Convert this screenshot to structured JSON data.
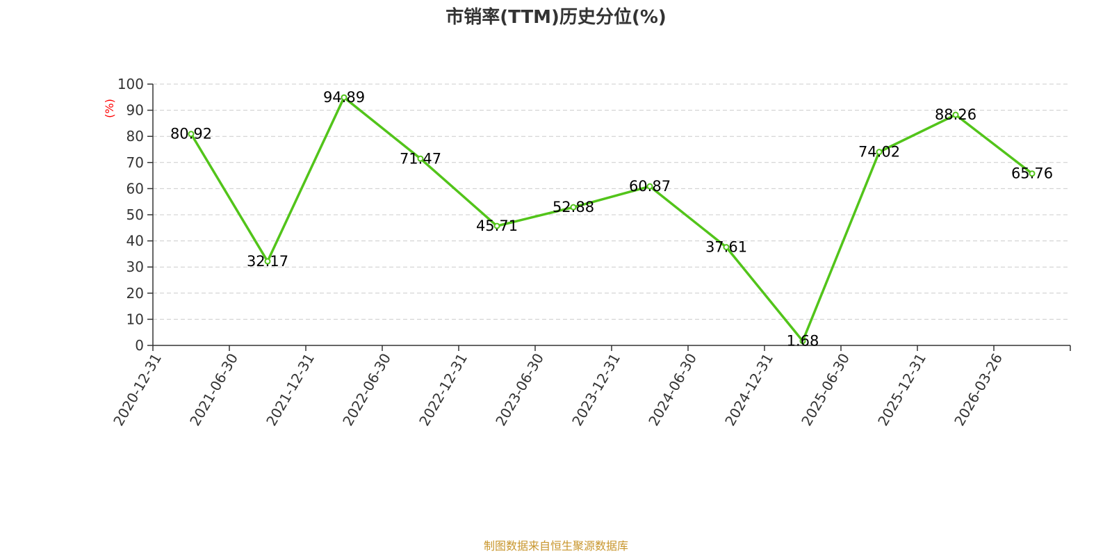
{
  "chart_data": {
    "type": "line",
    "title": "市销率(TTM)历史分位(%)",
    "ylabel": "(%)",
    "xlabel": "",
    "ylim": [
      0,
      100
    ],
    "yticks": [
      0,
      10,
      20,
      30,
      40,
      50,
      60,
      70,
      80,
      90,
      100
    ],
    "grid": true,
    "categories": [
      "2020-12-31",
      "2021-06-30",
      "2021-12-31",
      "2022-06-30",
      "2022-12-31",
      "2023-06-30",
      "2023-12-31",
      "2024-06-30",
      "2024-12-31",
      "2025-06-30",
      "2025-12-31",
      "2026-03-26"
    ],
    "series": [
      {
        "values": [
          80.92,
          32.17,
          94.89,
          71.47,
          45.71,
          52.88,
          60.87,
          37.61,
          1.68,
          74.02,
          88.26,
          65.76
        ],
        "labels": [
          "80.92",
          "32.17",
          "94.89",
          "71.47",
          "45.71",
          "52.88",
          "60.87",
          "37.61",
          "1.68",
          "74.02",
          "88.26",
          "65.76"
        ]
      }
    ],
    "colors": {
      "line": "#52c41a",
      "title": "#333333",
      "axis": "#333333",
      "ylabel": "#ff0000",
      "grid": "#cccccc",
      "source": "#c8962d"
    }
  },
  "source": "制图数据来自恒生聚源数据库"
}
